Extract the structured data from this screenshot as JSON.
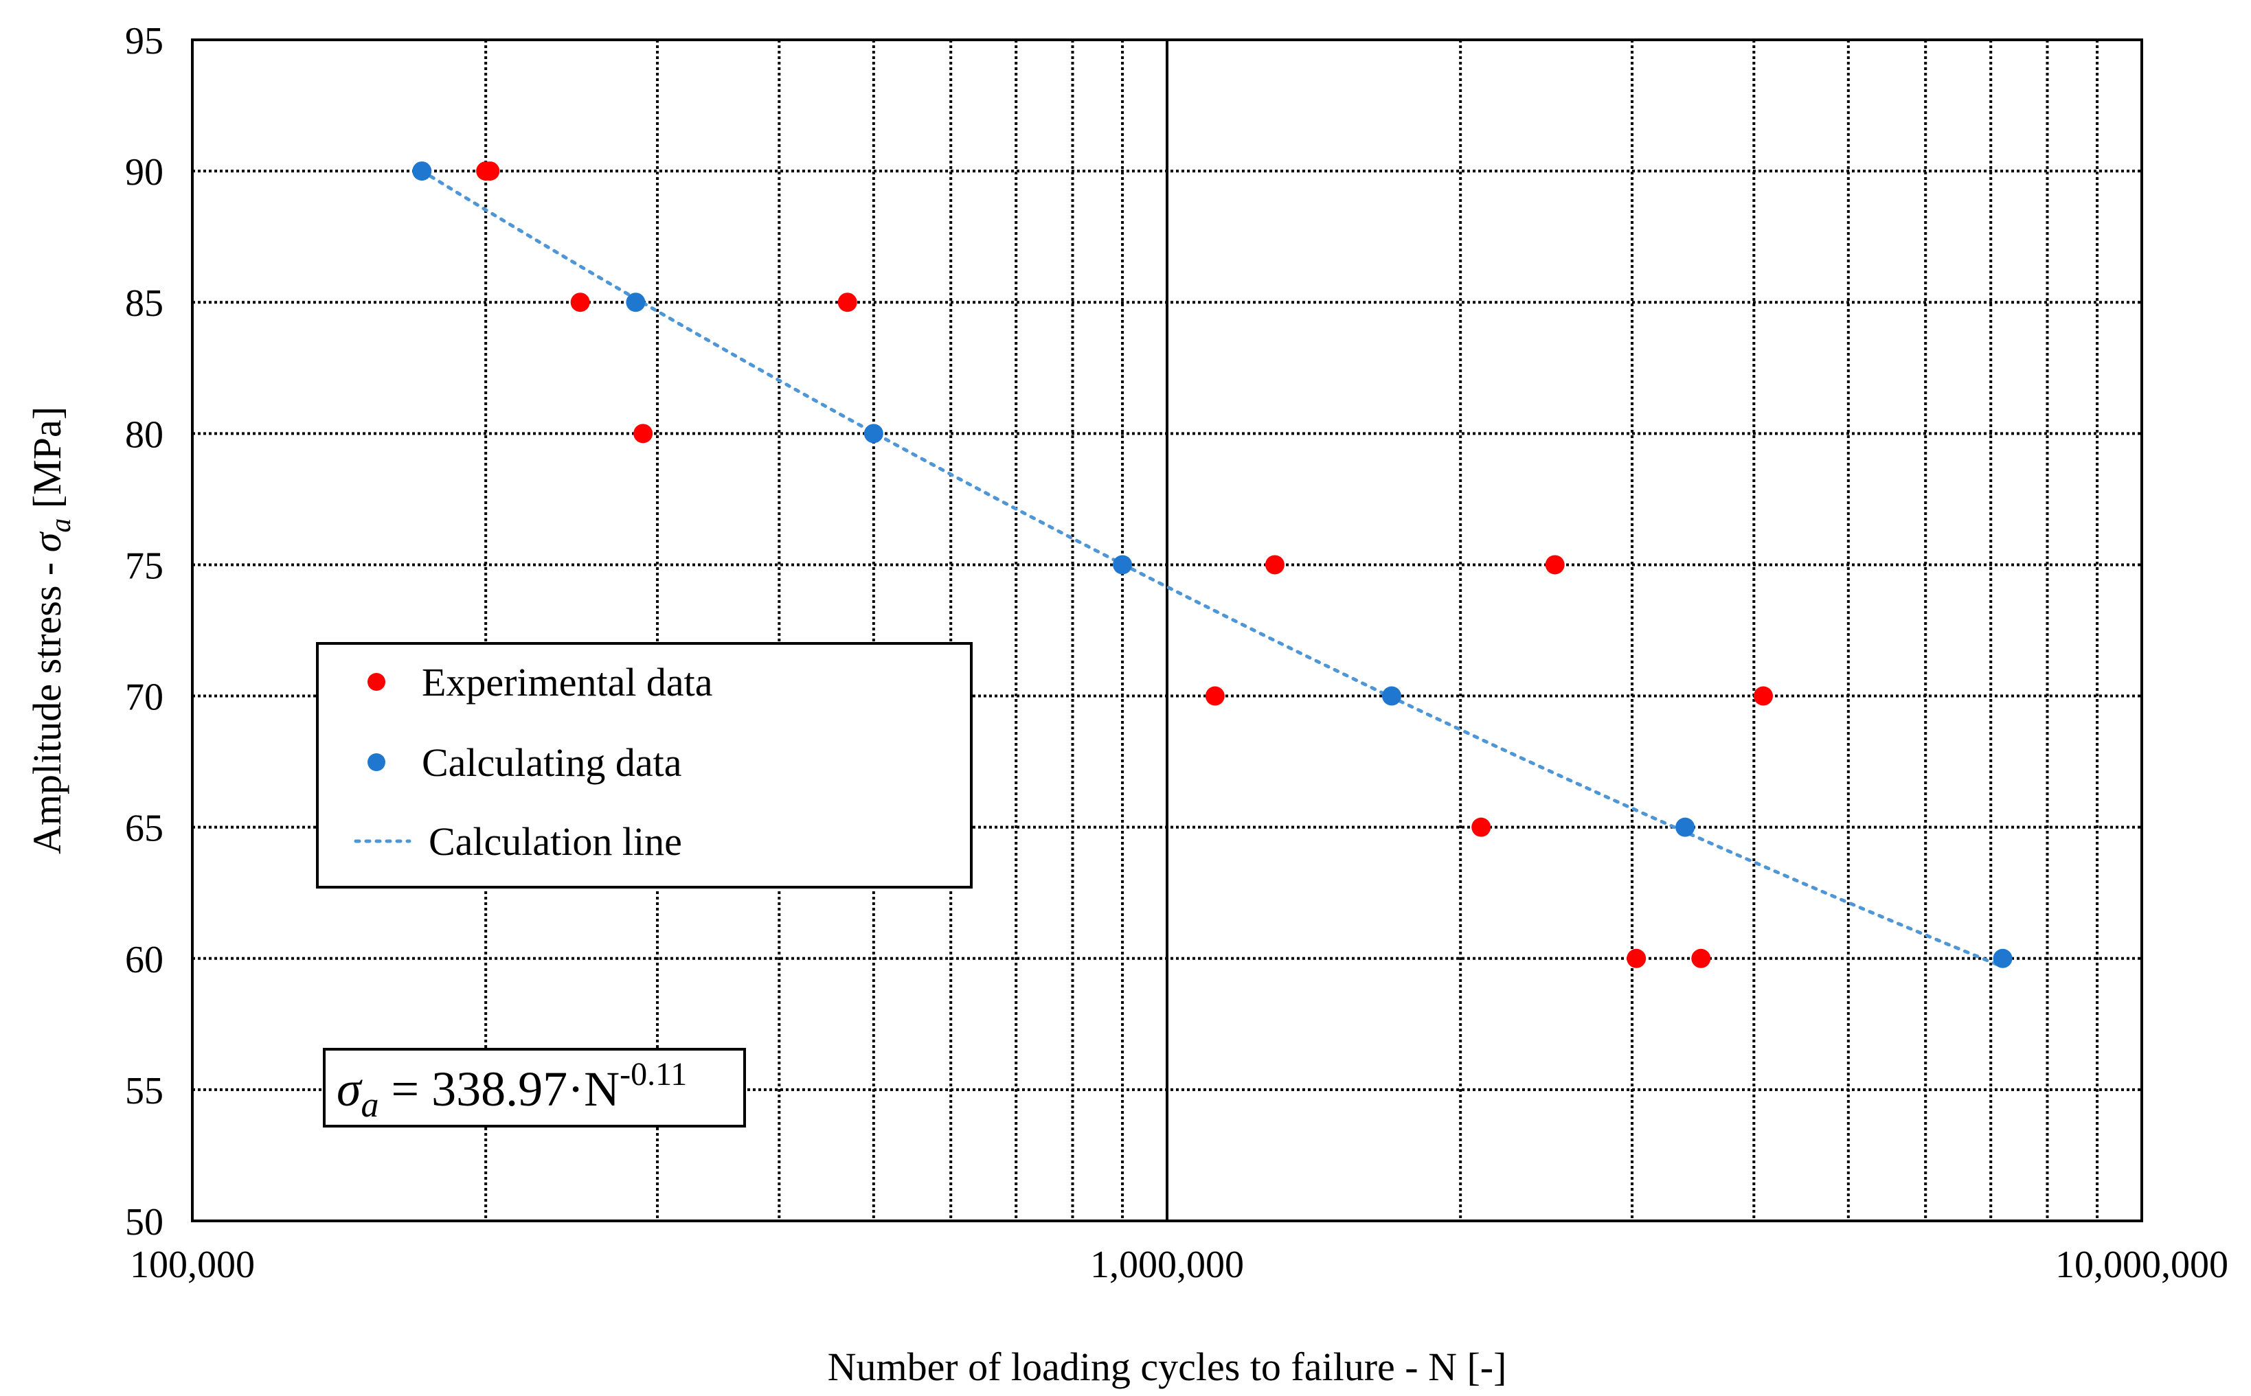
{
  "chart_data": {
    "type": "scatter",
    "xscale": "log",
    "xlim": [
      100000,
      10000000
    ],
    "ylim": [
      50,
      95
    ],
    "xticks": [
      {
        "value": 100000,
        "label": "100,000"
      },
      {
        "value": 1000000,
        "label": "1,000,000"
      },
      {
        "value": 10000000,
        "label": "10,000,000"
      }
    ],
    "yticks": [
      50,
      55,
      60,
      65,
      70,
      75,
      80,
      85,
      90,
      95
    ],
    "xlabel": "Number of loading cycles to failure - N [-]",
    "ylabel_main": "Amplitude stress - ",
    "ylabel_symbol": "σ",
    "ylabel_sub": "a",
    "ylabel_unit": " [MPa]",
    "grid": true,
    "series": [
      {
        "name": "Experimental data",
        "color": "#ff0000",
        "marker": "circle",
        "points": [
          [
            200000,
            90
          ],
          [
            202000,
            90
          ],
          [
            250000,
            85
          ],
          [
            290000,
            80
          ],
          [
            470000,
            85
          ],
          [
            1120000,
            70
          ],
          [
            1290000,
            75
          ],
          [
            2100000,
            65
          ],
          [
            2500000,
            75
          ],
          [
            3030000,
            60
          ],
          [
            3530000,
            60
          ],
          [
            4090000,
            70
          ]
        ]
      },
      {
        "name": "Calculating data",
        "color": "#1f77d0",
        "marker": "circle",
        "points": [
          [
            172000,
            90
          ],
          [
            285000,
            85
          ],
          [
            500000,
            80
          ],
          [
            900000,
            75
          ],
          [
            1700000,
            70
          ],
          [
            3400000,
            65
          ],
          [
            7200000,
            60
          ]
        ]
      },
      {
        "name": "Calculation line",
        "color": "#4f96d6",
        "style": "dotted",
        "equation": {
          "coefficient": 338.97,
          "exponent": -0.11
        },
        "x_range": [
          172000,
          7200000
        ]
      }
    ],
    "legend": {
      "position": "center-left",
      "entries": [
        "Experimental data",
        "Calculating data",
        "Calculation line"
      ]
    },
    "annotation": {
      "position": "bottom-left",
      "symbol": "σ",
      "sub": "a",
      "middle": " = 338.97·N",
      "sup": "-0.11"
    }
  }
}
